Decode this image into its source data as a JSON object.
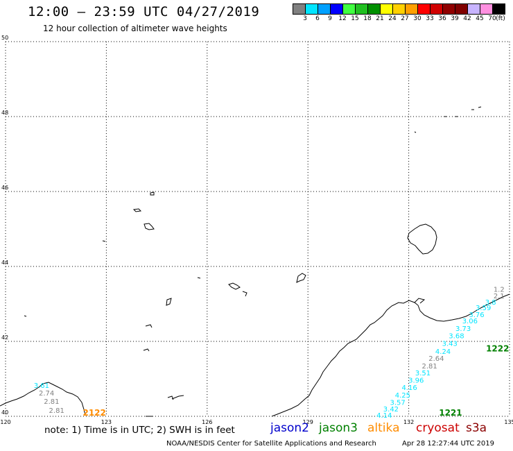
{
  "title": "12:00 – 23:59 UTC 04/27/2019",
  "subtitle": "12 hour collection of altimeter wave heights",
  "legend": {
    "colors": [
      "#808080",
      "#00e5ff",
      "#00a0ff",
      "#0000ff",
      "#40ff40",
      "#20c020",
      "#009000",
      "#ffff00",
      "#ffd000",
      "#ffa000",
      "#ff0000",
      "#d00000",
      "#900000",
      "#800000",
      "#c8b4ff",
      "#ff90e0",
      "#000000"
    ],
    "labels": [
      "3",
      "6",
      "9",
      "12",
      "15",
      "18",
      "21",
      "24",
      "27",
      "30",
      "33",
      "36",
      "39",
      "42",
      "45",
      "70",
      "(ft)"
    ]
  },
  "map": {
    "lon_ticks": [
      "120",
      "123",
      "126",
      "129",
      "132",
      "135"
    ],
    "lat_ticks": [
      "40",
      "42",
      "44",
      "46",
      "48",
      "50"
    ]
  },
  "points": [
    {
      "label": "1.2",
      "color": "#808080",
      "lon": 134.85,
      "lat": 43.32
    },
    {
      "label": "2.1",
      "color": "#808080",
      "lon": 134.85,
      "lat": 43.15
    },
    {
      "label": "3.8",
      "color": "#00e5ff",
      "lon": 134.6,
      "lat": 42.98
    },
    {
      "label": "3.59",
      "color": "#00e5ff",
      "lon": 134.45,
      "lat": 42.83
    },
    {
      "label": "3.76",
      "color": "#00e5ff",
      "lon": 134.25,
      "lat": 42.65
    },
    {
      "label": "3.06",
      "color": "#00e5ff",
      "lon": 134.05,
      "lat": 42.48
    },
    {
      "label": "3.73",
      "color": "#00e5ff",
      "lon": 133.85,
      "lat": 42.28
    },
    {
      "label": "3.68",
      "color": "#00e5ff",
      "lon": 133.65,
      "lat": 42.08
    },
    {
      "label": "3.43",
      "color": "#00e5ff",
      "lon": 133.45,
      "lat": 41.88
    },
    {
      "label": "4.24",
      "color": "#00e5ff",
      "lon": 133.25,
      "lat": 41.67
    },
    {
      "label": "2.64",
      "color": "#808080",
      "lon": 133.05,
      "lat": 41.48
    },
    {
      "label": "2.81",
      "color": "#808080",
      "lon": 132.85,
      "lat": 41.28
    },
    {
      "label": "3.51",
      "color": "#00e5ff",
      "lon": 132.65,
      "lat": 41.09
    },
    {
      "label": "3.96",
      "color": "#00e5ff",
      "lon": 132.45,
      "lat": 40.9
    },
    {
      "label": "4.16",
      "color": "#00e5ff",
      "lon": 132.25,
      "lat": 40.7
    },
    {
      "label": "4.25",
      "color": "#00e5ff",
      "lon": 132.05,
      "lat": 40.5
    },
    {
      "label": "3.57",
      "color": "#00e5ff",
      "lon": 131.9,
      "lat": 40.31
    },
    {
      "label": "3.42",
      "color": "#00e5ff",
      "lon": 131.7,
      "lat": 40.13
    },
    {
      "label": "4.14",
      "color": "#00e5ff",
      "lon": 131.5,
      "lat": 39.96
    },
    {
      "label": "3.61",
      "color": "#00e5ff",
      "lon": 121.3,
      "lat": 40.76
    },
    {
      "label": "2.74",
      "color": "#808080",
      "lon": 121.45,
      "lat": 40.56
    },
    {
      "label": "2.81",
      "color": "#808080",
      "lon": 121.6,
      "lat": 40.33
    },
    {
      "label": "2.81",
      "color": "#808080",
      "lon": 121.75,
      "lat": 40.09
    }
  ],
  "time_labels": [
    {
      "label": "1222",
      "color": "#008000",
      "lon": 134.3,
      "lat": 41.73
    },
    {
      "label": "1221",
      "color": "#008000",
      "lon": 132.9,
      "lat": 40.02
    },
    {
      "label": "2122",
      "color": "#ff8c00",
      "lon": 122.3,
      "lat": 40.02
    }
  ],
  "note": "note:  1) Time is in UTC;  2) SWH is in feet",
  "satellites": [
    {
      "name": "jason2",
      "color": "#0000cc"
    },
    {
      "name": "jason3",
      "color": "#008000"
    },
    {
      "name": "altika",
      "color": "#ff8c00"
    },
    {
      "name": "cryosat",
      "color": "#cc0000"
    },
    {
      "name": "s3a",
      "color": "#8b0000"
    }
  ],
  "footer": {
    "credit": "NOAA/NESDIS Center for Satellite Applications and Research",
    "timestamp": "Apr 28 12:27:44 UTC 2019"
  }
}
